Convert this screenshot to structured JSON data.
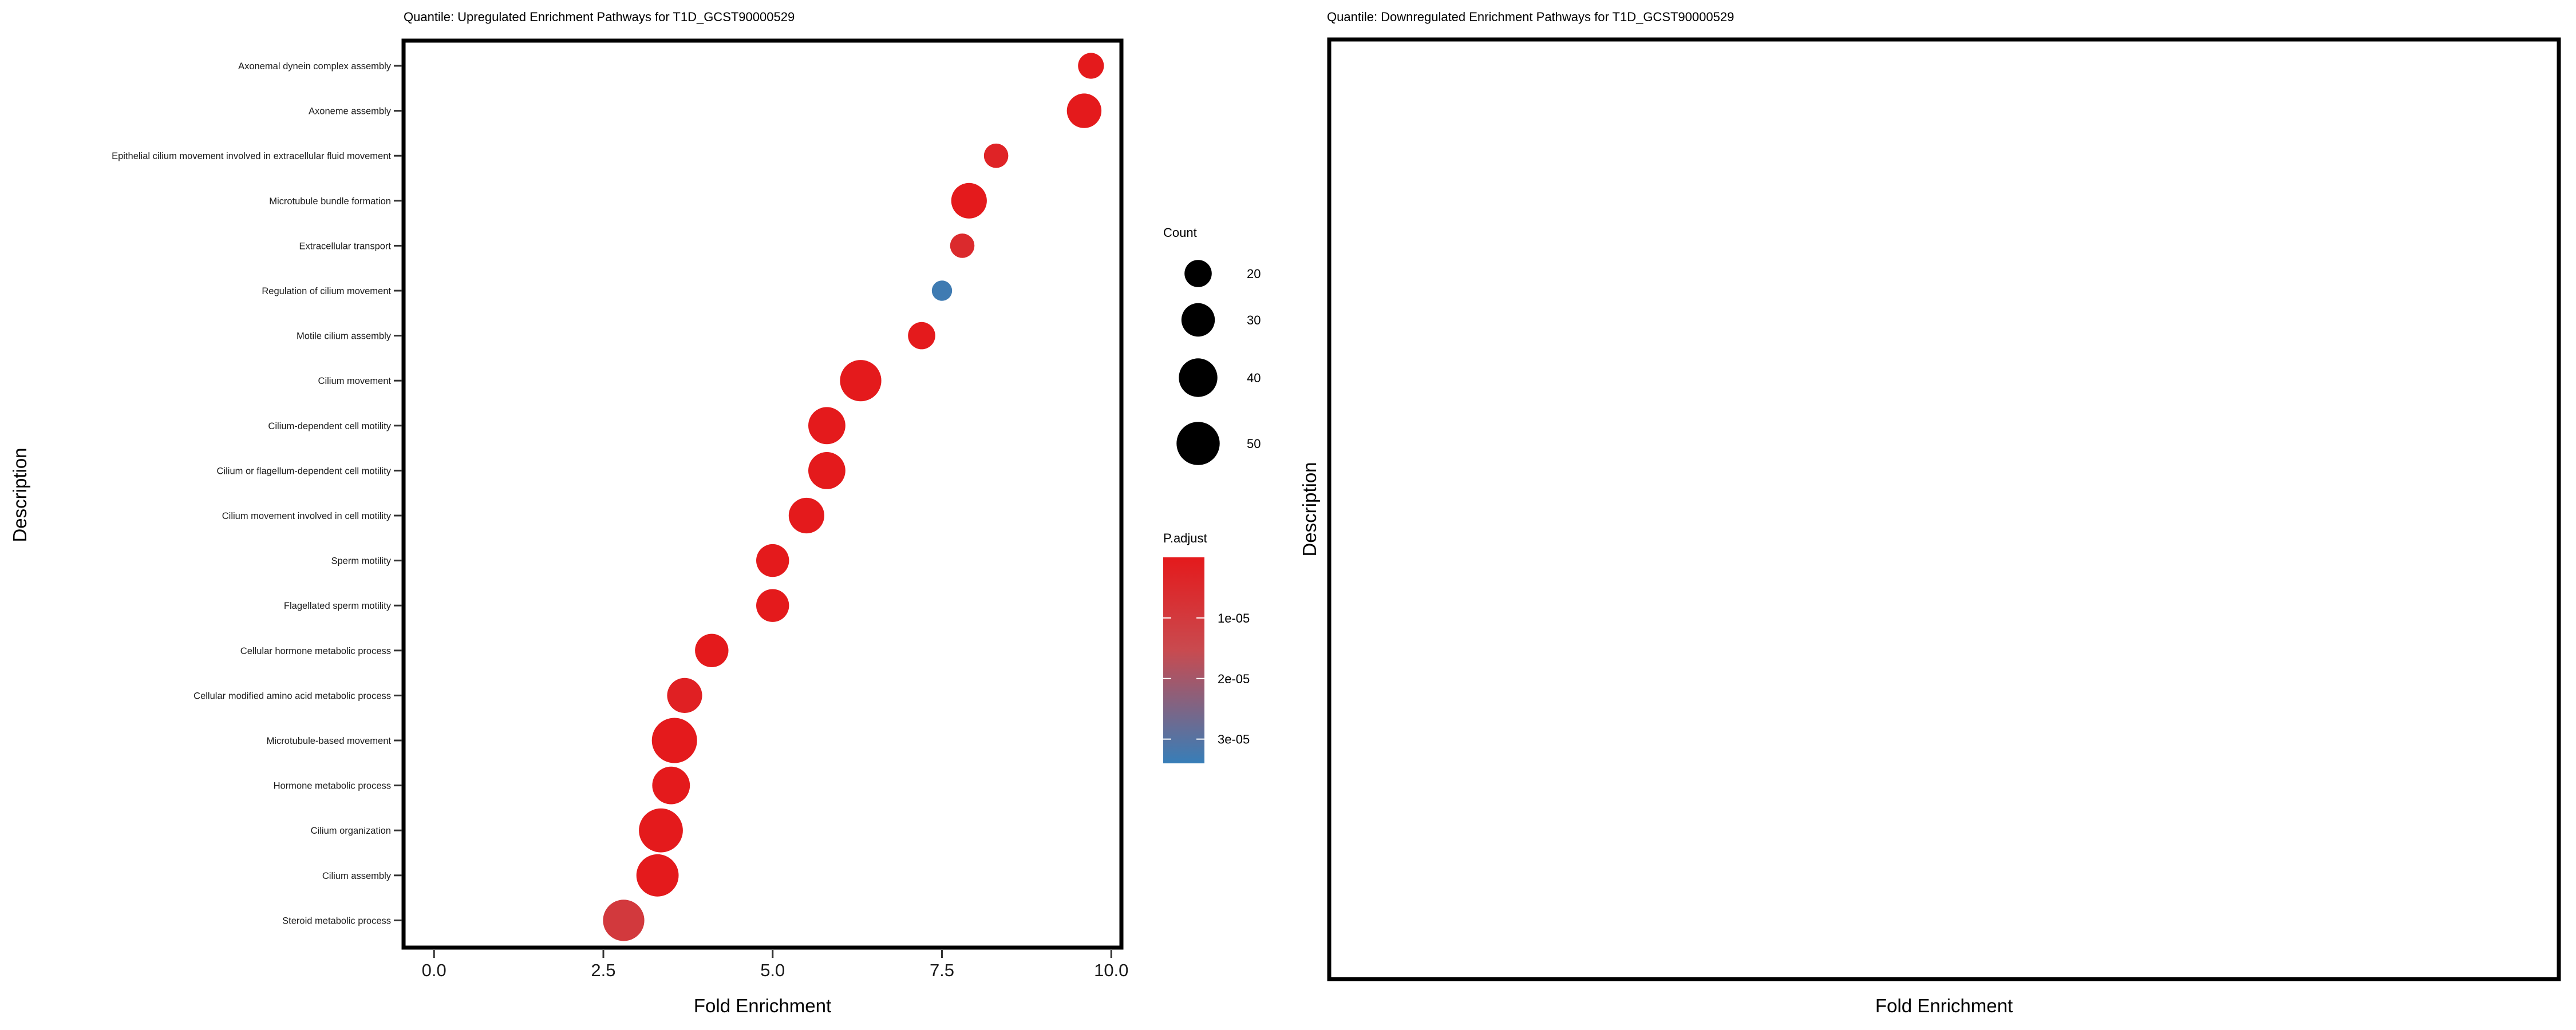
{
  "chart_data": [
    {
      "type": "scatter",
      "title": "Quantile: Upregulated Enrichment Pathways for T1D_GCST90000529",
      "xlabel": "Fold Enrichment",
      "ylabel": "Description",
      "xlim": [
        -0.45,
        10.15
      ],
      "xticks": [
        0,
        2.5,
        5,
        7.5,
        10
      ],
      "xtick_labels": [
        "0.0",
        "2.5",
        "5.0",
        "7.5",
        "10.0"
      ],
      "grid": false,
      "legend_position": "right",
      "size_legend": {
        "title": "Count",
        "values": [
          20,
          30,
          40,
          50
        ]
      },
      "color_legend": {
        "title": "P.adjust",
        "range": [
          0,
          3.4e-05
        ],
        "ticks": [
          1e-05,
          2e-05,
          3e-05
        ],
        "tick_labels": [
          "1e-05",
          "2e-05",
          "3e-05"
        ],
        "low_color": "#e41a1c",
        "high_color": "#377eb8"
      },
      "points": [
        {
          "description": "Axonemal dynein complex assembly",
          "fold_enrichment": 9.7,
          "count": 18,
          "p_adjust": 1e-07
        },
        {
          "description": "Axoneme assembly",
          "fold_enrichment": 9.6,
          "count": 32,
          "p_adjust": 1e-09
        },
        {
          "description": "Epithelial cilium movement involved in extracellular fluid movement",
          "fold_enrichment": 8.3,
          "count": 16,
          "p_adjust": 3e-06
        },
        {
          "description": "Microtubule bundle formation",
          "fold_enrichment": 7.9,
          "count": 34,
          "p_adjust": 1e-10
        },
        {
          "description": "Extracellular transport",
          "fold_enrichment": 7.8,
          "count": 16,
          "p_adjust": 5e-06
        },
        {
          "description": "Regulation of cilium movement",
          "fold_enrichment": 7.5,
          "count": 11,
          "p_adjust": 3.3e-05
        },
        {
          "description": "Motile cilium assembly",
          "fold_enrichment": 7.2,
          "count": 20,
          "p_adjust": 1e-07
        },
        {
          "description": "Cilium movement",
          "fold_enrichment": 6.3,
          "count": 46,
          "p_adjust": 1e-14
        },
        {
          "description": "Cilium-dependent cell motility",
          "fold_enrichment": 5.8,
          "count": 37,
          "p_adjust": 1e-11
        },
        {
          "description": "Cilium or flagellum-dependent cell motility",
          "fold_enrichment": 5.8,
          "count": 37,
          "p_adjust": 1e-11
        },
        {
          "description": "Cilium movement involved in cell motility",
          "fold_enrichment": 5.5,
          "count": 34,
          "p_adjust": 1e-10
        },
        {
          "description": "Sperm motility",
          "fold_enrichment": 5.0,
          "count": 29,
          "p_adjust": 1e-08
        },
        {
          "description": "Flagellated sperm motility",
          "fold_enrichment": 5.0,
          "count": 29,
          "p_adjust": 1e-08
        },
        {
          "description": "Cellular hormone metabolic process",
          "fold_enrichment": 4.1,
          "count": 30,
          "p_adjust": 1e-07
        },
        {
          "description": "Cellular modified amino acid metabolic process",
          "fold_enrichment": 3.7,
          "count": 33,
          "p_adjust": 2e-06
        },
        {
          "description": "Microtubule-based movement",
          "fold_enrichment": 3.55,
          "count": 55,
          "p_adjust": 1e-10
        },
        {
          "description": "Hormone metabolic process",
          "fold_enrichment": 3.5,
          "count": 38,
          "p_adjust": 1e-08
        },
        {
          "description": "Cilium organization",
          "fold_enrichment": 3.35,
          "count": 52,
          "p_adjust": 1e-10
        },
        {
          "description": "Cilium assembly",
          "fold_enrichment": 3.3,
          "count": 48,
          "p_adjust": 1e-09
        },
        {
          "description": "Steroid metabolic process",
          "fold_enrichment": 2.8,
          "count": 46,
          "p_adjust": 1e-05
        }
      ]
    },
    {
      "type": "scatter",
      "title": "Quantile: Downregulated Enrichment Pathways for T1D_GCST90000529",
      "xlabel": "Fold Enrichment",
      "ylabel": "Description",
      "points": []
    }
  ]
}
